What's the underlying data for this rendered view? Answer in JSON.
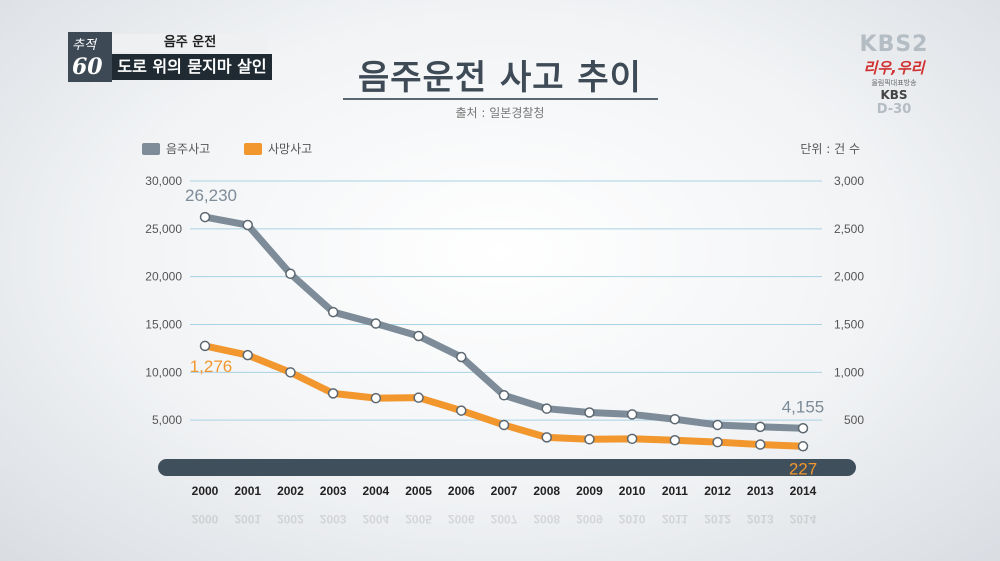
{
  "overlay": {
    "badge_top": "추적",
    "badge_number": "60",
    "topic": "음주 운전",
    "subtitle": "도로 위의 묻지마 살인",
    "channel": "KBS2",
    "slogan": "리우,우리",
    "slogan_small": "올림픽대표방송",
    "broadcaster": "KBS",
    "countdown": "D-30"
  },
  "colors": {
    "drunk_line": "#7d8c98",
    "death_line": "#f2962e",
    "bar": "#3f4f5c",
    "gridline": "#a9d2e4"
  },
  "chart_data": {
    "type": "line",
    "title": "음주운전 사고 추이",
    "source": "출처 : 일본경찰청",
    "unit": "단위 : 건 수",
    "categories": [
      "2000",
      "2001",
      "2002",
      "2003",
      "2004",
      "2005",
      "2006",
      "2007",
      "2008",
      "2009",
      "2010",
      "2011",
      "2012",
      "2013",
      "2014"
    ],
    "left_axis": {
      "ticks": [
        "5,000",
        "10,000",
        "15,000",
        "20,000",
        "25,000",
        "30,000"
      ],
      "range": [
        0,
        30000
      ]
    },
    "right_axis": {
      "ticks": [
        "500",
        "1,000",
        "1,500",
        "2,000",
        "2,500",
        "3,000"
      ],
      "range": [
        0,
        3000
      ]
    },
    "legend_position": "top-left",
    "series": [
      {
        "name": "음주사고",
        "axis": "left",
        "values": [
          26230,
          25400,
          20300,
          16300,
          15100,
          13800,
          11600,
          7600,
          6200,
          5800,
          5600,
          5100,
          4500,
          4300,
          4155
        ],
        "labels": {
          "0": "26,230",
          "14": "4,155"
        }
      },
      {
        "name": "사망사고",
        "axis": "right",
        "values": [
          1276,
          1180,
          1000,
          780,
          730,
          735,
          600,
          450,
          320,
          300,
          305,
          290,
          270,
          245,
          227
        ],
        "labels": {
          "0": "1,276",
          "14": "227"
        }
      }
    ]
  }
}
